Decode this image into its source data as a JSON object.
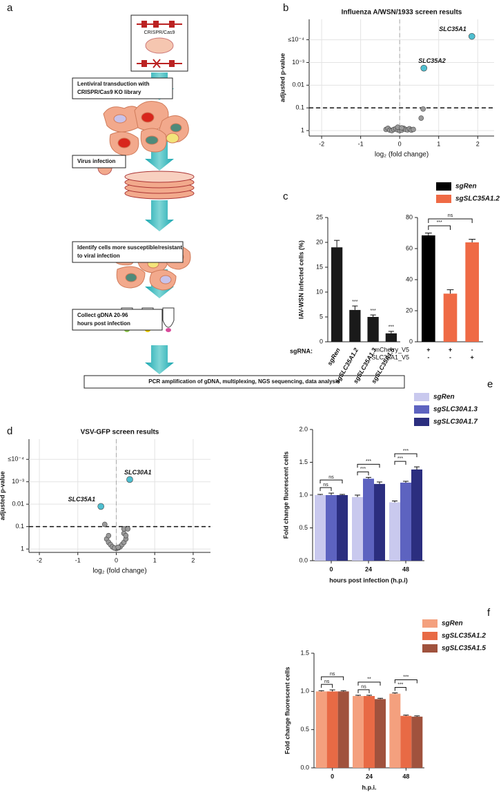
{
  "diagram": {
    "label": "a",
    "construct": "CRISPR/Cas9",
    "steps": [
      [
        "Lentiviral transduction with",
        "CRISPR/Cas9 KO library"
      ],
      [
        "Virus infection"
      ],
      [
        "Identify cells more susceptible/resistant",
        "to viral infection"
      ],
      [
        "Collect gDNA 20-96",
        "hours post infection"
      ]
    ],
    "final": "PCR amplification of gDNA, multiplexing, NGS sequencing, data analysis"
  },
  "chart_data": [
    {
      "type": "scatter",
      "panel": "b",
      "title": "Influenza A/WSN/1933 screen results",
      "xlabel": "log₂ (fold change)",
      "ylabel": "adjusted p-value",
      "xlim": [
        -2.32,
        2.42
      ],
      "ylim": [
        -0.24,
        4.9
      ],
      "xticks": [
        -2,
        -1,
        0,
        1,
        2
      ],
      "yticks": [
        {
          "value": 0,
          "label": "1"
        },
        {
          "value": 1,
          "label": "0.1"
        },
        {
          "value": 2,
          "label": "0.01"
        },
        {
          "value": 3,
          "label": "10⁻³"
        },
        {
          "value": 4,
          "label": "≤10⁻⁴"
        }
      ],
      "grid": true,
      "threshold": 1,
      "series": [
        {
          "color": "#4fbfd0",
          "x": [
            1.85,
            0.62
          ],
          "values": [
            4.15,
            2.75
          ],
          "labels": [
            "SLC35A1",
            "SLC35A2"
          ]
        },
        {
          "color": "#9a9a9a",
          "x": [
            0.6,
            0.55,
            -0.35,
            -0.3,
            -0.25,
            -0.2,
            -0.15,
            -0.1,
            -0.05,
            0,
            0.05,
            0.1,
            0.15,
            0.2,
            0.25,
            0.3,
            0.35,
            -0.05,
            0.05
          ],
          "values": [
            0.95,
            0.55,
            0.05,
            0.1,
            0.02,
            0,
            0.05,
            0.08,
            0.03,
            0,
            0.02,
            0.1,
            0.05,
            0.03,
            0.08,
            0.02,
            0.05,
            0.15,
            0.12
          ]
        }
      ]
    },
    {
      "type": "bar",
      "panel": "c",
      "ylabel": "IAV-WSN infected cells (%)",
      "category_title": "sgRNA:",
      "categories": [
        "sgRen",
        "sgSLC35A1.2",
        "sgSLC35A1.3",
        "sgSLC35A1.5"
      ],
      "values": [
        19,
        6.4,
        5.0,
        1.7
      ],
      "errors": [
        1.4,
        0.8,
        0.4,
        0.4
      ],
      "significance": [
        null,
        "***",
        "***",
        "***"
      ],
      "color": "#1a1a1a",
      "ylim": [
        0,
        25
      ],
      "yticks": [
        0,
        5,
        10,
        15,
        20,
        25
      ]
    },
    {
      "type": "bar",
      "values": [
        68.5,
        31,
        64
      ],
      "errors": [
        1.5,
        2.5,
        2
      ],
      "colors": [
        "#000000",
        "#ef6a45",
        "#ef6a45"
      ],
      "ylim": [
        0,
        80
      ],
      "yticks": [
        0,
        20,
        40,
        60,
        80
      ],
      "significance": [
        "***",
        "ns"
      ],
      "legend": [
        {
          "name": "sgRen",
          "color": "#000000"
        },
        {
          "name": "sgSLC35A1.2",
          "color": "#ef6a45"
        }
      ],
      "conditions": [
        {
          "name": "mCherry_V5",
          "values": [
            "+",
            "+",
            "-"
          ]
        },
        {
          "name": "SLC35A1_V5",
          "values": [
            "-",
            "-",
            "+"
          ]
        }
      ]
    },
    {
      "type": "scatter",
      "panel": "d",
      "title": "VSV-GFP screen results",
      "xlabel": "log₂ (fold change)",
      "ylabel": "adjusted p-value",
      "xlim": [
        -2.27,
        2.45
      ],
      "ylim": [
        -0.15,
        4.9
      ],
      "xticks": [
        -2,
        -1,
        0,
        1,
        2
      ],
      "yticks": [
        {
          "value": 0,
          "label": "1"
        },
        {
          "value": 1,
          "label": "0.1"
        },
        {
          "value": 2,
          "label": "0.01"
        },
        {
          "value": 3,
          "label": "10⁻³"
        },
        {
          "value": 4,
          "label": "≤10⁻⁴"
        }
      ],
      "grid": true,
      "threshold": 1,
      "series": [
        {
          "color": "#4fbfd0",
          "x": [
            0.35,
            -0.4
          ],
          "values": [
            3.1,
            1.9
          ],
          "labels": [
            "SLC30A1",
            "SLC35A1"
          ]
        },
        {
          "color": "#9a9a9a",
          "x": [
            -0.25,
            -0.2,
            -0.15,
            -0.1,
            -0.05,
            0,
            0.05,
            0.1,
            0.15,
            0.2,
            0.25,
            -0.2,
            0.2,
            0.2,
            0.25,
            -0.3,
            0.3,
            -0.05,
            0.05
          ],
          "values": [
            0.45,
            0.3,
            0.2,
            0.1,
            0.05,
            0.02,
            0.05,
            0.1,
            0.2,
            0.3,
            0.45,
            0.6,
            0.7,
            0.9,
            0.6,
            1.1,
            0.9,
            0.05,
            0.08
          ]
        }
      ]
    },
    {
      "type": "grouped_bar",
      "panel": "e",
      "xlabel": "hours post infection (h.p.i)",
      "ylabel": "Fold change fluorescent cells",
      "categories": [
        "0",
        "24",
        "48"
      ],
      "ylim": [
        0,
        2
      ],
      "yticks": [
        {
          "value": 0,
          "label": "0.0"
        },
        {
          "value": 0.5,
          "label": "0.5"
        },
        {
          "value": 1,
          "label": "1.0"
        },
        {
          "value": 1.5,
          "label": "1.5"
        },
        {
          "value": 2,
          "label": "2.0"
        }
      ],
      "series": [
        {
          "name": "sgRen",
          "color": "#c9c9ee",
          "values": [
            1.0,
            0.97,
            0.89
          ],
          "errors": [
            0.01,
            0.03,
            0.02
          ]
        },
        {
          "name": "sgSLC30A1.3",
          "color": "#5d63c0",
          "values": [
            1.0,
            1.25,
            1.19
          ],
          "errors": [
            0.03,
            0.02,
            0.02
          ]
        },
        {
          "name": "sgSLC30A1.7",
          "color": "#2b2e7f",
          "values": [
            1.0,
            1.17,
            1.39
          ],
          "errors": [
            0.01,
            0.03,
            0.04
          ]
        }
      ],
      "significance": [
        [
          "ns",
          "ns"
        ],
        [
          "***",
          "***"
        ],
        [
          "***",
          "***"
        ]
      ]
    },
    {
      "type": "grouped_bar",
      "panel": "f",
      "xlabel": "h.p.i.",
      "ylabel": "Fold change fluorescent cells",
      "categories": [
        "0",
        "24",
        "48"
      ],
      "ylim": [
        0,
        1.5
      ],
      "yticks": [
        {
          "value": 0,
          "label": "0.0"
        },
        {
          "value": 0.5,
          "label": "0.5"
        },
        {
          "value": 1,
          "label": "1.0"
        },
        {
          "value": 1.5,
          "label": "1.5"
        }
      ],
      "series": [
        {
          "name": "sgRen",
          "color": "#f4a07e",
          "values": [
            1.0,
            0.94,
            0.97
          ],
          "errors": [
            0.01,
            0.01,
            0.01
          ]
        },
        {
          "name": "sgSLC35A1.2",
          "color": "#e86a45",
          "values": [
            1.0,
            0.94,
            0.68
          ],
          "errors": [
            0.02,
            0.01,
            0.01
          ]
        },
        {
          "name": "sgSLC35A1.5",
          "color": "#a0523d",
          "values": [
            1.0,
            0.9,
            0.67
          ],
          "errors": [
            0.01,
            0.01,
            0.01
          ]
        }
      ],
      "significance": [
        [
          "ns",
          "ns"
        ],
        [
          "ns",
          "**"
        ],
        [
          "***",
          "***"
        ]
      ]
    }
  ]
}
